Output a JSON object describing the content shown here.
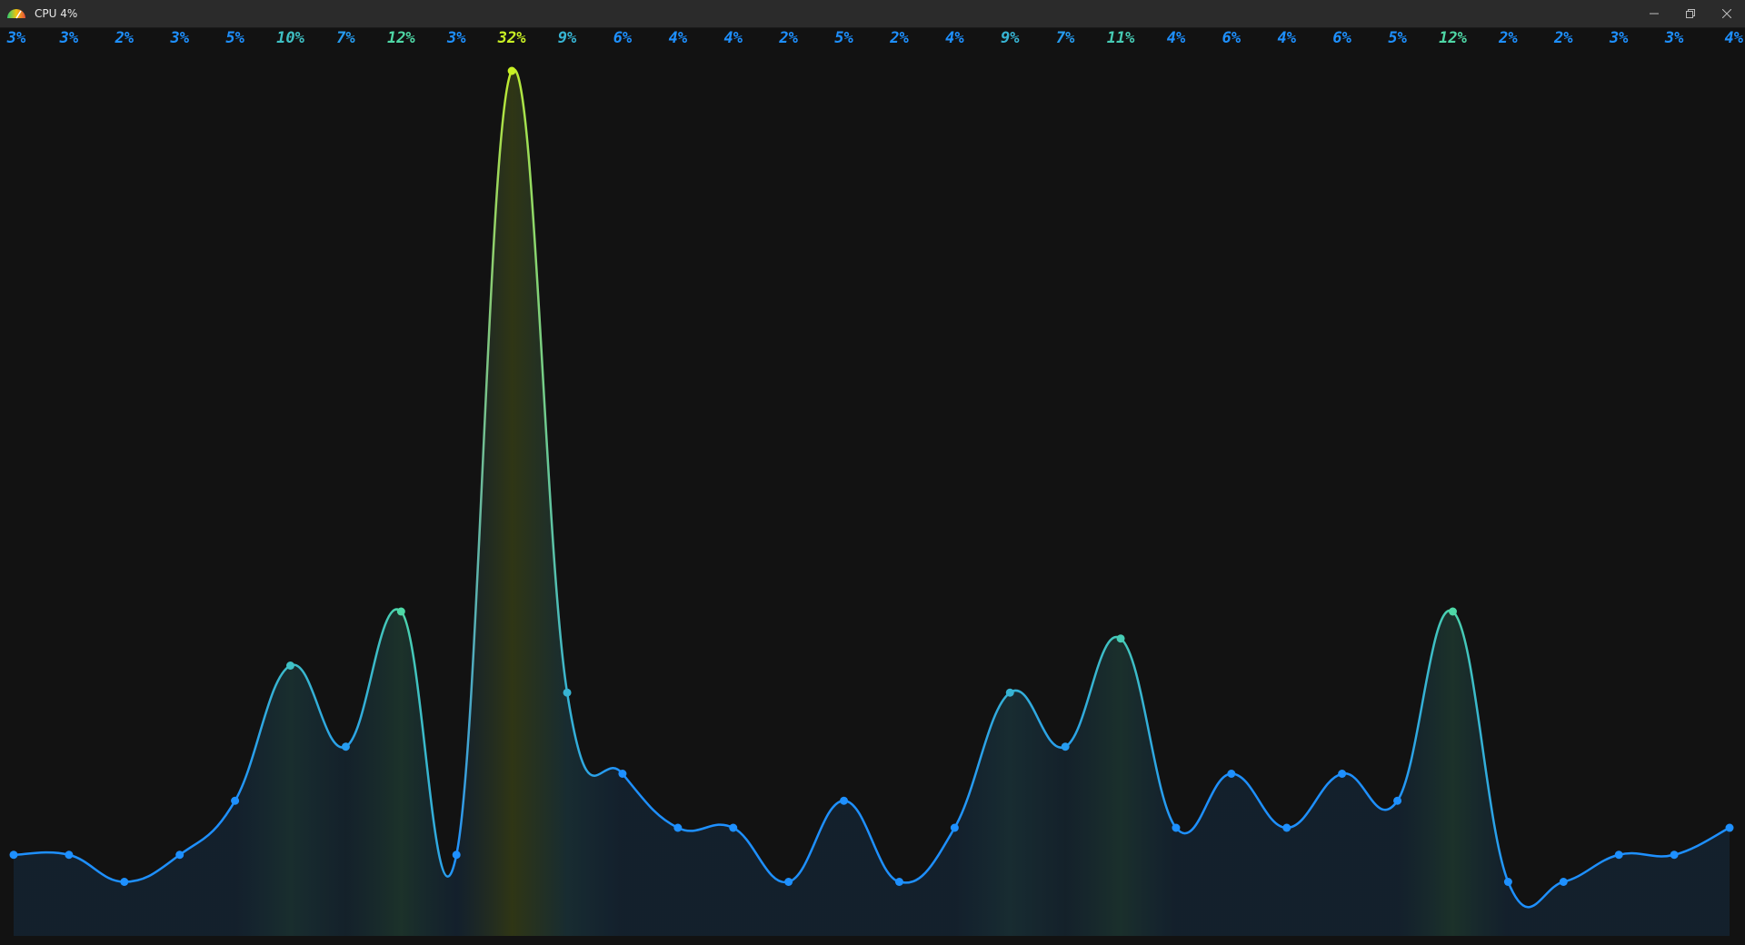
{
  "window": {
    "title": "CPU 4%",
    "minimize_icon": "minimize-icon",
    "maximize_icon": "restore-icon",
    "close_icon": "close-icon"
  },
  "colors": {
    "background": "#121212",
    "titlebar": "#2b2b2b",
    "low": "#1e90ff",
    "mid": "#4fd8a6",
    "high": "#c8f024"
  },
  "chart_data": {
    "type": "area",
    "series": [
      {
        "values": [
          3,
          3,
          2,
          3,
          5,
          10,
          7,
          12,
          3,
          32,
          9,
          6,
          4,
          4,
          2,
          5,
          2,
          4,
          9,
          7,
          11,
          4,
          6,
          4,
          6,
          5,
          12,
          2,
          2,
          3,
          3,
          4
        ]
      }
    ],
    "labels": [
      "3%",
      "3%",
      "2%",
      "3%",
      "5%",
      "10%",
      "7%",
      "12%",
      "3%",
      "32%",
      "9%",
      "6%",
      "4%",
      "4%",
      "2%",
      "5%",
      "2%",
      "4%",
      "9%",
      "7%",
      "11%",
      "4%",
      "6%",
      "4%",
      "6%",
      "5%",
      "12%",
      "2%",
      "2%",
      "3%",
      "3%",
      "4%"
    ],
    "ylim": [
      0,
      32
    ],
    "grid": false,
    "legend": "none"
  }
}
